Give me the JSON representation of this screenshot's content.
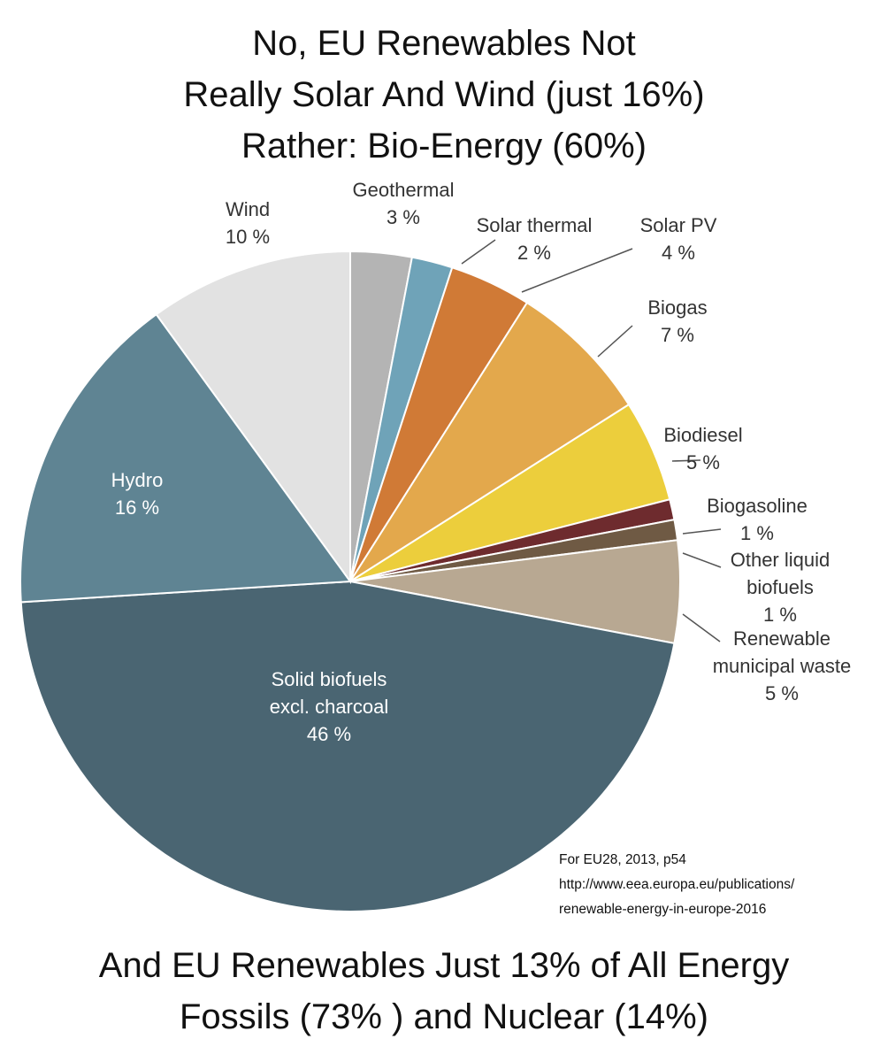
{
  "title_lines": [
    "No, EU Renewables Not",
    "Really Solar And Wind (just 16%)",
    "Rather: Bio-Energy (60%)"
  ],
  "footer_lines": [
    "And EU Renewables Just 13% of All Energy",
    "Fossils (73% ) and Nuclear (14%)"
  ],
  "source_lines": [
    "For EU28, 2013, p54",
    "http://www.eea.europa.eu/publications/",
    "renewable-energy-in-europe-2016"
  ],
  "chart_data": {
    "type": "pie",
    "title": "No, EU Renewables Not Really Solar And Wind (just 16%) Rather: Bio-Energy (60%)",
    "start": "12 o'clock, slices proceed clockwise from Geothermal",
    "slices": [
      {
        "name": "Geothermal",
        "label_lines": [
          "Geothermal",
          "3 %"
        ],
        "value": 3,
        "color": "#b4b4b4"
      },
      {
        "name": "Solar thermal",
        "label_lines": [
          "Solar thermal",
          "2 %"
        ],
        "value": 2,
        "color": "#6fa3b8"
      },
      {
        "name": "Solar PV",
        "label_lines": [
          "Solar PV",
          "4 %"
        ],
        "value": 4,
        "color": "#d07a36"
      },
      {
        "name": "Biogas",
        "label_lines": [
          "Biogas",
          "7 %"
        ],
        "value": 7,
        "color": "#e3a84c"
      },
      {
        "name": "Biodiesel",
        "label_lines": [
          "Biodiesel",
          "5 %"
        ],
        "value": 5,
        "color": "#ecce3c"
      },
      {
        "name": "Biogasoline",
        "label_lines": [
          "Biogasoline",
          "1 %"
        ],
        "value": 1,
        "color": "#6e2b2e"
      },
      {
        "name": "Other liquid biofuels",
        "label_lines": [
          "Other liquid",
          "biofuels",
          "1 %"
        ],
        "value": 1,
        "color": "#6f5a44"
      },
      {
        "name": "Renewable municipal waste",
        "label_lines": [
          "Renewable",
          "municipal waste",
          "5 %"
        ],
        "value": 5,
        "color": "#b8a892"
      },
      {
        "name": "Solid biofuels excl. charcoal",
        "label_lines": [
          "Solid biofuels",
          "excl. charcoal",
          "46 %"
        ],
        "value": 46,
        "color": "#4a6572"
      },
      {
        "name": "Hydro",
        "label_lines": [
          "Hydro",
          "16 %"
        ],
        "value": 16,
        "color": "#5f8493"
      },
      {
        "name": "Wind",
        "label_lines": [
          "Wind",
          "10 %"
        ],
        "value": 10,
        "color": "#e2e2e2"
      }
    ]
  }
}
